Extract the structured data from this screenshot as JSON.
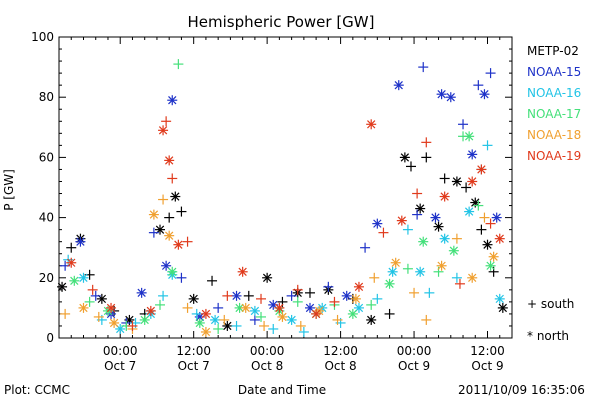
{
  "footer": {
    "plot_source": "Plot: CCMC",
    "timestamp": "2011/10/09 16:35:06"
  },
  "colors": {
    "METP-02": "#000000",
    "NOAA-15": "#1e32c8",
    "NOAA-16": "#22c4e6",
    "NOAA-17": "#44e07a",
    "NOAA-18": "#f0a030",
    "NOAA-19": "#e03a1c"
  },
  "chart_data": {
    "type": "scatter",
    "title": "Hemispheric Power [GW]",
    "xlabel": "Date and Time",
    "ylabel": "P [GW]",
    "xlim": [
      "2011-10-06T14:00",
      "2011-10-09T16:00"
    ],
    "ylim": [
      0,
      100
    ],
    "grid": false,
    "legend_position": "right",
    "y_ticks": [
      0,
      20,
      40,
      60,
      80,
      100
    ],
    "x_ticks": [
      {
        "t": "2011-10-07T00:00",
        "line1": "00:00",
        "line2": "Oct 7"
      },
      {
        "t": "2011-10-07T12:00",
        "line1": "12:00",
        "line2": "Oct 7"
      },
      {
        "t": "2011-10-08T00:00",
        "line1": "00:00",
        "line2": "Oct 8"
      },
      {
        "t": "2011-10-08T12:00",
        "line1": "12:00",
        "line2": "Oct 8"
      },
      {
        "t": "2011-10-09T00:00",
        "line1": "00:00",
        "line2": "Oct 9"
      },
      {
        "t": "2011-10-09T12:00",
        "line1": "12:00",
        "line2": "Oct 9"
      }
    ],
    "marker_legend": [
      {
        "symbol": "+",
        "label": "south"
      },
      {
        "symbol": "*",
        "label": "north"
      }
    ],
    "series": [
      {
        "name": "METP-02",
        "points": [
          [
            "2011-10-06T14:30",
            17,
            "N"
          ],
          [
            "2011-10-06T16:00",
            30,
            "S"
          ],
          [
            "2011-10-06T17:30",
            33,
            "N"
          ],
          [
            "2011-10-06T19:00",
            21,
            "S"
          ],
          [
            "2011-10-06T21:00",
            13,
            "N"
          ],
          [
            "2011-10-06T23:00",
            9,
            "S"
          ],
          [
            "2011-10-07T01:30",
            6,
            "N"
          ],
          [
            "2011-10-07T04:00",
            8,
            "S"
          ],
          [
            "2011-10-07T06:30",
            36,
            "N"
          ],
          [
            "2011-10-07T08:00",
            40,
            "S"
          ],
          [
            "2011-10-07T09:00",
            47,
            "N"
          ],
          [
            "2011-10-07T10:00",
            42,
            "S"
          ],
          [
            "2011-10-07T12:00",
            13,
            "N"
          ],
          [
            "2011-10-07T15:00",
            19,
            "S"
          ],
          [
            "2011-10-07T17:30",
            4,
            "N"
          ],
          [
            "2011-10-07T21:00",
            14,
            "S"
          ],
          [
            "2011-10-08T00:00",
            20,
            "N"
          ],
          [
            "2011-10-08T02:30",
            12,
            "S"
          ],
          [
            "2011-10-08T05:00",
            15,
            "N"
          ],
          [
            "2011-10-08T07:00",
            15,
            "S"
          ],
          [
            "2011-10-08T10:00",
            16,
            "N"
          ],
          [
            "2011-10-08T14:00",
            13,
            "S"
          ],
          [
            "2011-10-08T17:00",
            6,
            "N"
          ],
          [
            "2011-10-08T20:00",
            8,
            "S"
          ],
          [
            "2011-10-08T22:30",
            60,
            "N"
          ],
          [
            "2011-10-08T23:30",
            57,
            "S"
          ],
          [
            "2011-10-09T01:00",
            43,
            "N"
          ],
          [
            "2011-10-09T02:00",
            60,
            "S"
          ],
          [
            "2011-10-09T04:00",
            37,
            "N"
          ],
          [
            "2011-10-09T05:00",
            53,
            "S"
          ],
          [
            "2011-10-09T07:00",
            52,
            "N"
          ],
          [
            "2011-10-09T08:30",
            50,
            "S"
          ],
          [
            "2011-10-09T10:00",
            45,
            "N"
          ],
          [
            "2011-10-09T11:00",
            36,
            "S"
          ],
          [
            "2011-10-09T12:00",
            31,
            "N"
          ],
          [
            "2011-10-09T13:00",
            22,
            "S"
          ],
          [
            "2011-10-09T14:30",
            10,
            "N"
          ]
        ]
      },
      {
        "name": "NOAA-15",
        "points": [
          [
            "2011-10-06T15:00",
            24,
            "S"
          ],
          [
            "2011-10-06T17:30",
            32,
            "N"
          ],
          [
            "2011-10-06T20:00",
            14,
            "S"
          ],
          [
            "2011-10-06T22:30",
            8,
            "N"
          ],
          [
            "2011-10-07T01:00",
            5,
            "S"
          ],
          [
            "2011-10-07T03:30",
            15,
            "N"
          ],
          [
            "2011-10-07T05:30",
            35,
            "S"
          ],
          [
            "2011-10-07T07:30",
            24,
            "N"
          ],
          [
            "2011-10-07T08:30",
            79,
            "N"
          ],
          [
            "2011-10-07T10:00",
            20,
            "S"
          ],
          [
            "2011-10-07T13:00",
            7,
            "N"
          ],
          [
            "2011-10-07T16:00",
            10,
            "S"
          ],
          [
            "2011-10-07T19:00",
            14,
            "N"
          ],
          [
            "2011-10-07T22:00",
            6,
            "S"
          ],
          [
            "2011-10-08T01:00",
            11,
            "N"
          ],
          [
            "2011-10-08T04:00",
            14,
            "S"
          ],
          [
            "2011-10-08T07:00",
            10,
            "N"
          ],
          [
            "2011-10-08T10:00",
            17,
            "S"
          ],
          [
            "2011-10-08T13:00",
            14,
            "N"
          ],
          [
            "2011-10-08T16:00",
            30,
            "S"
          ],
          [
            "2011-10-08T18:00",
            38,
            "N"
          ],
          [
            "2011-10-08T21:30",
            84,
            "N"
          ],
          [
            "2011-10-09T00:30",
            41,
            "S"
          ],
          [
            "2011-10-09T01:30",
            90,
            "S"
          ],
          [
            "2011-10-09T03:30",
            40,
            "N"
          ],
          [
            "2011-10-09T04:30",
            81,
            "N"
          ],
          [
            "2011-10-09T06:00",
            80,
            "N"
          ],
          [
            "2011-10-09T08:00",
            71,
            "S"
          ],
          [
            "2011-10-09T09:30",
            61,
            "N"
          ],
          [
            "2011-10-09T10:30",
            84,
            "S"
          ],
          [
            "2011-10-09T11:30",
            81,
            "N"
          ],
          [
            "2011-10-09T12:30",
            88,
            "S"
          ],
          [
            "2011-10-09T13:30",
            40,
            "N"
          ]
        ]
      },
      {
        "name": "NOAA-16",
        "points": [
          [
            "2011-10-06T15:30",
            26,
            "S"
          ],
          [
            "2011-10-06T18:00",
            20,
            "N"
          ],
          [
            "2011-10-06T21:00",
            6,
            "S"
          ],
          [
            "2011-10-07T00:00",
            3,
            "N"
          ],
          [
            "2011-10-07T02:30",
            5,
            "S"
          ],
          [
            "2011-10-07T05:00",
            8,
            "N"
          ],
          [
            "2011-10-07T07:00",
            14,
            "S"
          ],
          [
            "2011-10-07T08:30",
            21,
            "N"
          ],
          [
            "2011-10-07T12:30",
            8,
            "S"
          ],
          [
            "2011-10-07T15:30",
            6,
            "N"
          ],
          [
            "2011-10-07T19:00",
            4,
            "S"
          ],
          [
            "2011-10-07T22:00",
            9,
            "N"
          ],
          [
            "2011-10-08T01:00",
            3,
            "S"
          ],
          [
            "2011-10-08T04:00",
            6,
            "N"
          ],
          [
            "2011-10-08T06:00",
            2,
            "S"
          ],
          [
            "2011-10-08T09:00",
            10,
            "N"
          ],
          [
            "2011-10-08T12:00",
            5,
            "S"
          ],
          [
            "2011-10-08T15:00",
            10,
            "N"
          ],
          [
            "2011-10-08T18:00",
            13,
            "S"
          ],
          [
            "2011-10-08T20:30",
            22,
            "N"
          ],
          [
            "2011-10-08T23:00",
            36,
            "S"
          ],
          [
            "2011-10-09T01:00",
            22,
            "N"
          ],
          [
            "2011-10-09T02:30",
            15,
            "S"
          ],
          [
            "2011-10-09T05:00",
            33,
            "N"
          ],
          [
            "2011-10-09T07:00",
            20,
            "S"
          ],
          [
            "2011-10-09T09:00",
            42,
            "N"
          ],
          [
            "2011-10-09T11:00",
            56,
            "S"
          ],
          [
            "2011-10-09T12:00",
            64,
            "S"
          ],
          [
            "2011-10-09T14:00",
            13,
            "N"
          ]
        ]
      },
      {
        "name": "NOAA-17",
        "points": [
          [
            "2011-10-06T16:30",
            19,
            "N"
          ],
          [
            "2011-10-06T19:00",
            12,
            "S"
          ],
          [
            "2011-10-06T22:00",
            9,
            "N"
          ],
          [
            "2011-10-07T01:00",
            4,
            "S"
          ],
          [
            "2011-10-07T04:00",
            6,
            "N"
          ],
          [
            "2011-10-07T06:30",
            11,
            "S"
          ],
          [
            "2011-10-07T08:30",
            22,
            "N"
          ],
          [
            "2011-10-07T09:30",
            91,
            "S"
          ],
          [
            "2011-10-07T13:00",
            5,
            "N"
          ],
          [
            "2011-10-07T16:00",
            3,
            "S"
          ],
          [
            "2011-10-07T19:30",
            10,
            "N"
          ],
          [
            "2011-10-07T23:00",
            7,
            "S"
          ],
          [
            "2011-10-08T02:00",
            9,
            "N"
          ],
          [
            "2011-10-08T05:00",
            12,
            "S"
          ],
          [
            "2011-10-08T08:00",
            8,
            "N"
          ],
          [
            "2011-10-08T11:00",
            11,
            "S"
          ],
          [
            "2011-10-08T14:00",
            8,
            "N"
          ],
          [
            "2011-10-08T17:00",
            11,
            "S"
          ],
          [
            "2011-10-08T20:00",
            18,
            "N"
          ],
          [
            "2011-10-08T23:00",
            23,
            "S"
          ],
          [
            "2011-10-09T01:30",
            32,
            "N"
          ],
          [
            "2011-10-09T04:00",
            22,
            "S"
          ],
          [
            "2011-10-09T06:30",
            29,
            "N"
          ],
          [
            "2011-10-09T08:00",
            67,
            "S"
          ],
          [
            "2011-10-09T09:00",
            67,
            "N"
          ],
          [
            "2011-10-09T10:30",
            44,
            "S"
          ],
          [
            "2011-10-09T12:30",
            24,
            "N"
          ]
        ]
      },
      {
        "name": "NOAA-18",
        "points": [
          [
            "2011-10-06T15:00",
            8,
            "S"
          ],
          [
            "2011-10-06T18:00",
            10,
            "N"
          ],
          [
            "2011-10-06T20:30",
            7,
            "S"
          ],
          [
            "2011-10-06T23:00",
            5,
            "N"
          ],
          [
            "2011-10-07T02:00",
            3,
            "S"
          ],
          [
            "2011-10-07T05:30",
            41,
            "N"
          ],
          [
            "2011-10-07T07:00",
            46,
            "S"
          ],
          [
            "2011-10-07T08:00",
            34,
            "N"
          ],
          [
            "2011-10-07T11:00",
            10,
            "S"
          ],
          [
            "2011-10-07T14:00",
            2,
            "N"
          ],
          [
            "2011-10-07T17:00",
            6,
            "S"
          ],
          [
            "2011-10-07T20:30",
            10,
            "N"
          ],
          [
            "2011-10-07T23:30",
            4,
            "S"
          ],
          [
            "2011-10-08T02:30",
            7,
            "N"
          ],
          [
            "2011-10-08T05:30",
            4,
            "S"
          ],
          [
            "2011-10-08T08:30",
            9,
            "N"
          ],
          [
            "2011-10-08T11:30",
            6,
            "S"
          ],
          [
            "2011-10-08T14:30",
            13,
            "N"
          ],
          [
            "2011-10-08T17:30",
            20,
            "S"
          ],
          [
            "2011-10-08T21:00",
            25,
            "N"
          ],
          [
            "2011-10-09T00:00",
            15,
            "S"
          ],
          [
            "2011-10-09T02:00",
            6,
            "S"
          ],
          [
            "2011-10-09T04:30",
            24,
            "N"
          ],
          [
            "2011-10-09T07:00",
            33,
            "S"
          ],
          [
            "2011-10-09T09:30",
            20,
            "N"
          ],
          [
            "2011-10-09T11:30",
            40,
            "S"
          ],
          [
            "2011-10-09T13:00",
            27,
            "N"
          ]
        ]
      },
      {
        "name": "NOAA-19",
        "points": [
          [
            "2011-10-06T16:00",
            25,
            "N"
          ],
          [
            "2011-10-06T19:30",
            16,
            "S"
          ],
          [
            "2011-10-06T22:30",
            10,
            "N"
          ],
          [
            "2011-10-07T02:00",
            4,
            "S"
          ],
          [
            "2011-10-07T05:00",
            9,
            "N"
          ],
          [
            "2011-10-07T07:00",
            69,
            "N"
          ],
          [
            "2011-10-07T07:30",
            72,
            "S"
          ],
          [
            "2011-10-07T08:00",
            59,
            "N"
          ],
          [
            "2011-10-07T08:30",
            53,
            "S"
          ],
          [
            "2011-10-07T09:30",
            31,
            "N"
          ],
          [
            "2011-10-07T11:00",
            32,
            "S"
          ],
          [
            "2011-10-07T14:00",
            8,
            "N"
          ],
          [
            "2011-10-07T17:30",
            14,
            "S"
          ],
          [
            "2011-10-07T20:00",
            22,
            "N"
          ],
          [
            "2011-10-07T23:00",
            13,
            "S"
          ],
          [
            "2011-10-08T02:00",
            10,
            "N"
          ],
          [
            "2011-10-08T05:00",
            16,
            "S"
          ],
          [
            "2011-10-08T08:00",
            8,
            "N"
          ],
          [
            "2011-10-08T11:00",
            12,
            "S"
          ],
          [
            "2011-10-08T15:00",
            17,
            "N"
          ],
          [
            "2011-10-08T17:00",
            71,
            "N"
          ],
          [
            "2011-10-08T19:00",
            35,
            "S"
          ],
          [
            "2011-10-08T22:00",
            39,
            "N"
          ],
          [
            "2011-10-09T00:30",
            48,
            "S"
          ],
          [
            "2011-10-09T02:00",
            65,
            "S"
          ],
          [
            "2011-10-09T05:00",
            47,
            "N"
          ],
          [
            "2011-10-09T07:30",
            18,
            "S"
          ],
          [
            "2011-10-09T09:30",
            52,
            "N"
          ],
          [
            "2011-10-09T11:00",
            56,
            "N"
          ],
          [
            "2011-10-09T12:30",
            38,
            "S"
          ],
          [
            "2011-10-09T14:00",
            33,
            "N"
          ]
        ]
      }
    ]
  }
}
